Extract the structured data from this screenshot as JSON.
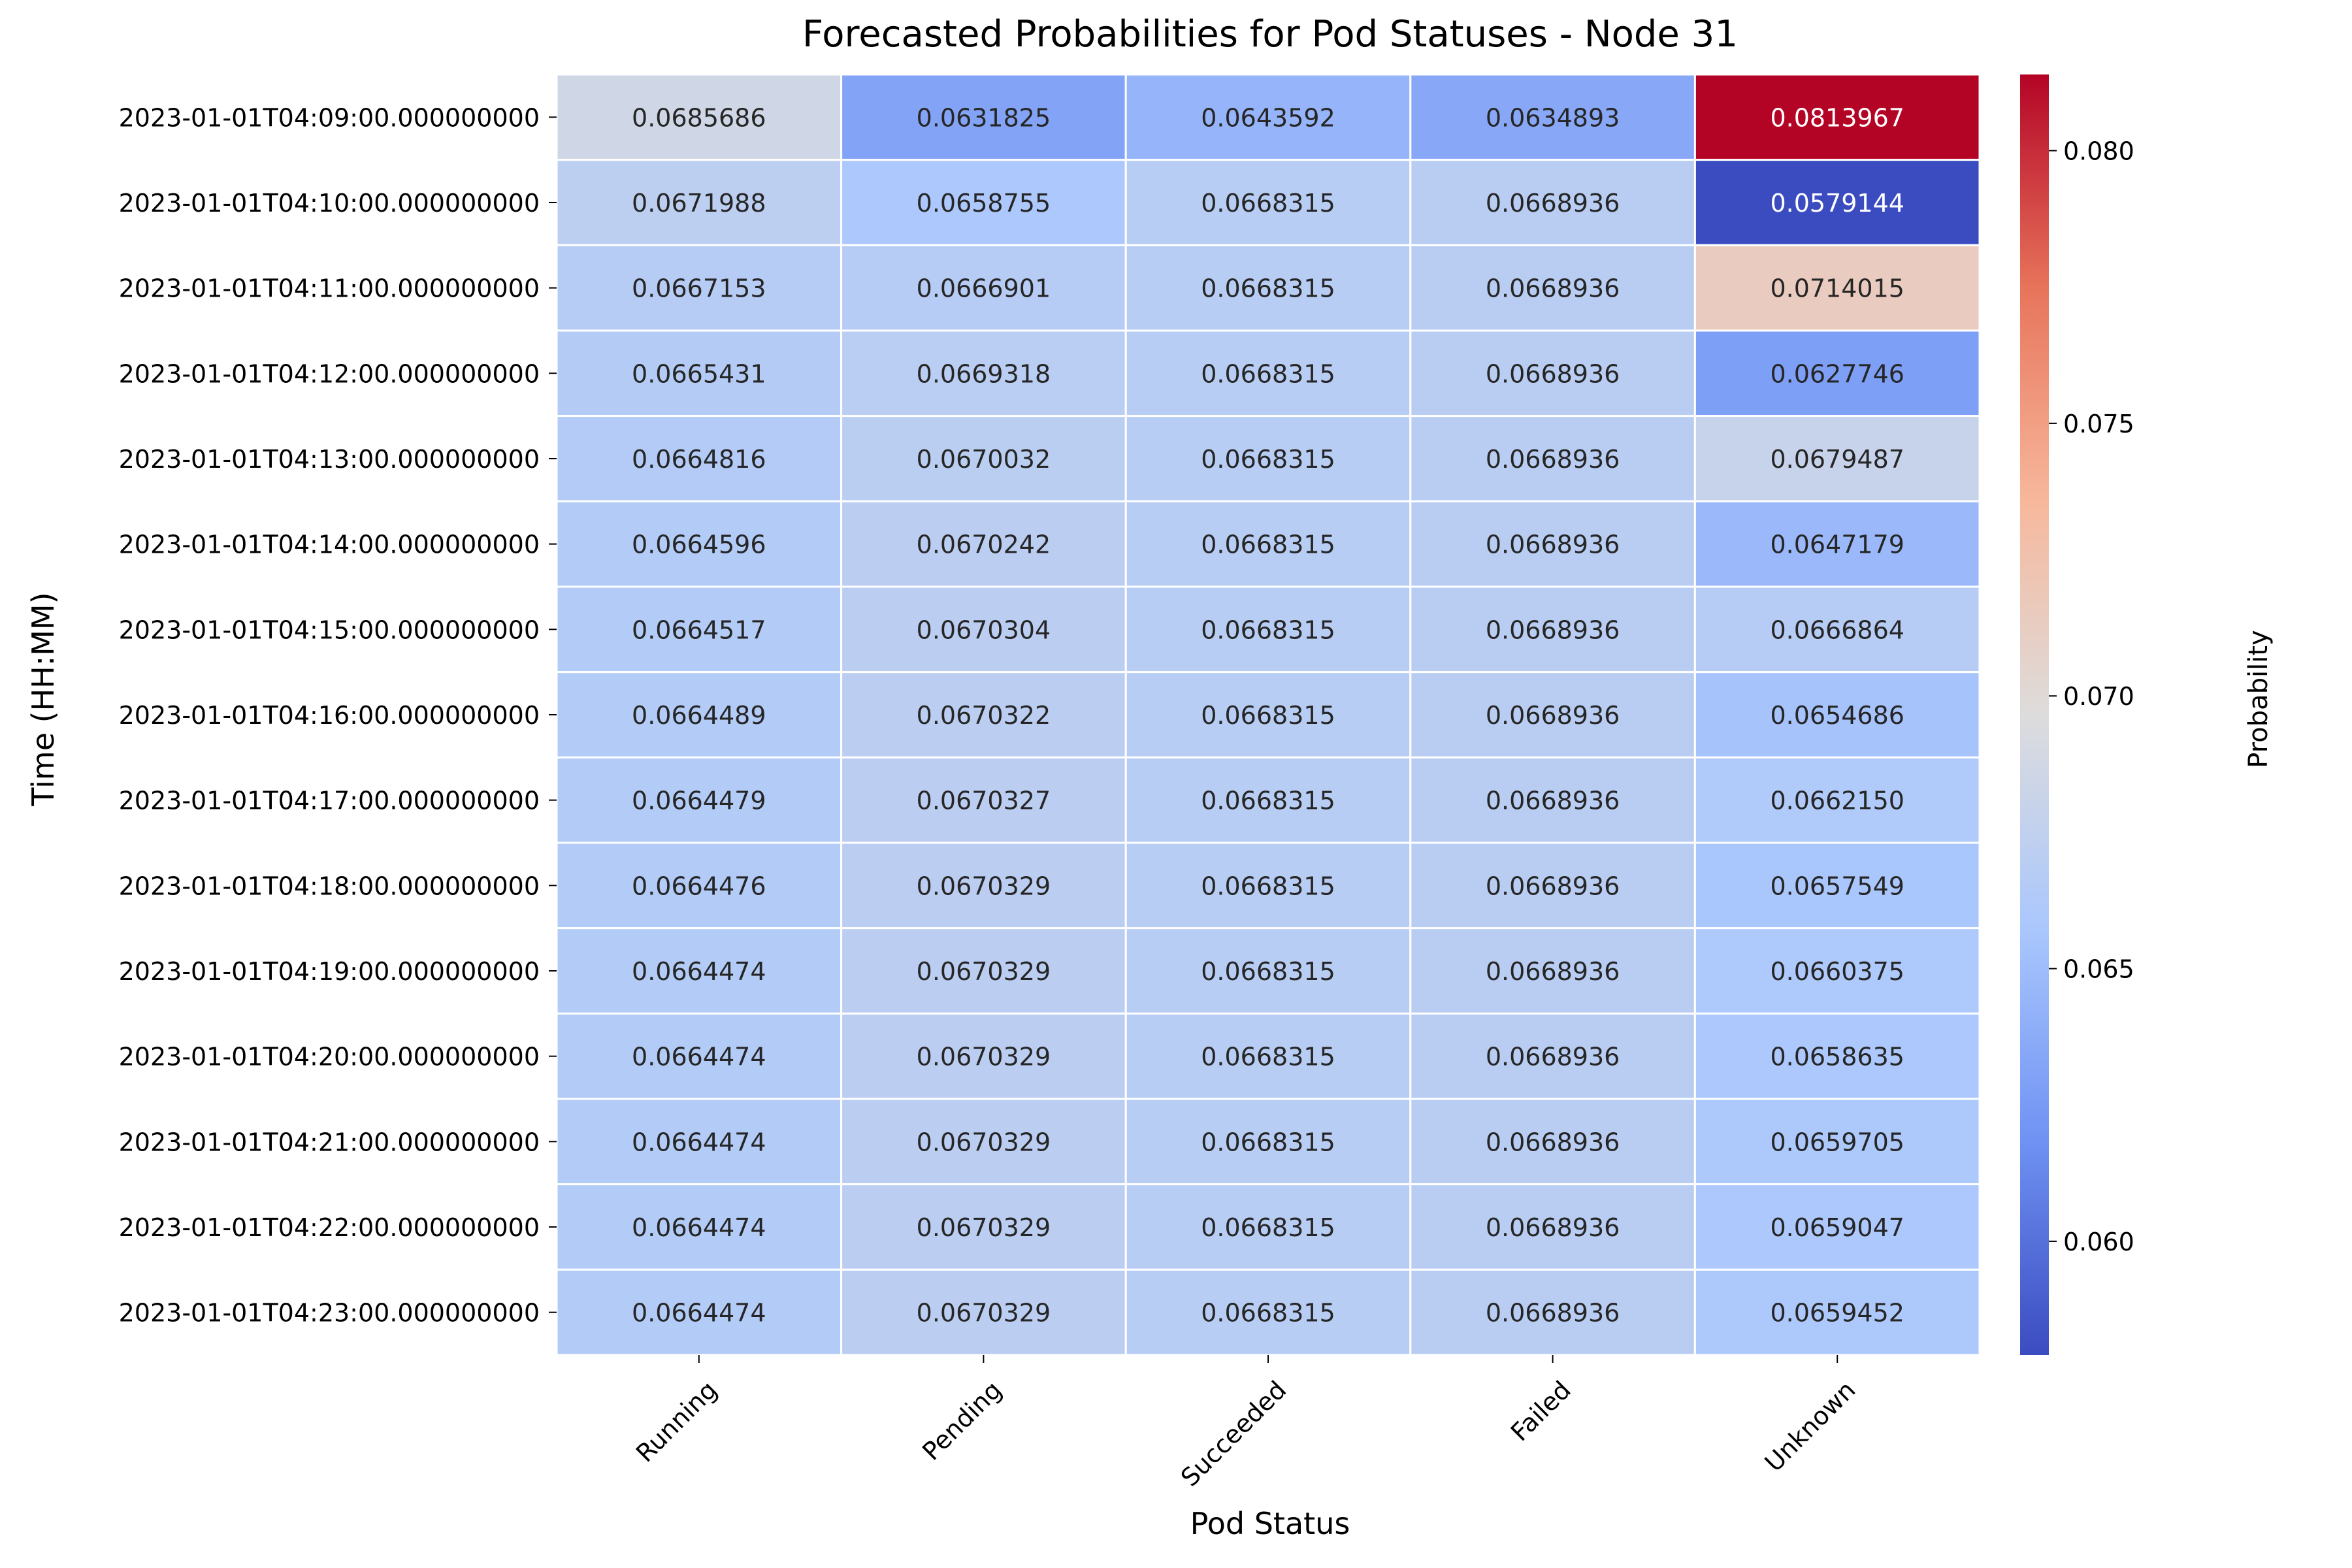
{
  "chart_data": {
    "type": "heatmap",
    "title": "Forecasted Probabilities for Pod Statuses - Node 31",
    "xlabel": "Pod Status",
    "ylabel": "Time (HH:MM)",
    "columns": [
      "Running",
      "Pending",
      "Succeeded",
      "Failed",
      "Unknown"
    ],
    "rows": [
      "2023-01-01T04:09:00.000000000",
      "2023-01-01T04:10:00.000000000",
      "2023-01-01T04:11:00.000000000",
      "2023-01-01T04:12:00.000000000",
      "2023-01-01T04:13:00.000000000",
      "2023-01-01T04:14:00.000000000",
      "2023-01-01T04:15:00.000000000",
      "2023-01-01T04:16:00.000000000",
      "2023-01-01T04:17:00.000000000",
      "2023-01-01T04:18:00.000000000",
      "2023-01-01T04:19:00.000000000",
      "2023-01-01T04:20:00.000000000",
      "2023-01-01T04:21:00.000000000",
      "2023-01-01T04:22:00.000000000",
      "2023-01-01T04:23:00.000000000"
    ],
    "values": [
      [
        0.0685686,
        0.0631825,
        0.0643592,
        0.0634893,
        0.0813967
      ],
      [
        0.0671988,
        0.0658755,
        0.0668315,
        0.0668936,
        0.0579144
      ],
      [
        0.0667153,
        0.0666901,
        0.0668315,
        0.0668936,
        0.0714015
      ],
      [
        0.0665431,
        0.0669318,
        0.0668315,
        0.0668936,
        0.0627746
      ],
      [
        0.0664816,
        0.0670032,
        0.0668315,
        0.0668936,
        0.0679487
      ],
      [
        0.0664596,
        0.0670242,
        0.0668315,
        0.0668936,
        0.0647179
      ],
      [
        0.0664517,
        0.0670304,
        0.0668315,
        0.0668936,
        0.0666864
      ],
      [
        0.0664489,
        0.0670322,
        0.0668315,
        0.0668936,
        0.0654686
      ],
      [
        0.0664479,
        0.0670327,
        0.0668315,
        0.0668936,
        0.066215
      ],
      [
        0.0664476,
        0.0670329,
        0.0668315,
        0.0668936,
        0.0657549
      ],
      [
        0.0664474,
        0.0670329,
        0.0668315,
        0.0668936,
        0.0660375
      ],
      [
        0.0664474,
        0.0670329,
        0.0668315,
        0.0668936,
        0.0658635
      ],
      [
        0.0664474,
        0.0670329,
        0.0668315,
        0.0668936,
        0.0659705
      ],
      [
        0.0664474,
        0.0670329,
        0.0668315,
        0.0668936,
        0.0659047
      ],
      [
        0.0664474,
        0.0670329,
        0.0668315,
        0.0668936,
        0.0659452
      ]
    ],
    "value_labels": [
      [
        "0.0685686",
        "0.0631825",
        "0.0643592",
        "0.0634893",
        "0.0813967"
      ],
      [
        "0.0671988",
        "0.0658755",
        "0.0668315",
        "0.0668936",
        "0.0579144"
      ],
      [
        "0.0667153",
        "0.0666901",
        "0.0668315",
        "0.0668936",
        "0.0714015"
      ],
      [
        "0.0665431",
        "0.0669318",
        "0.0668315",
        "0.0668936",
        "0.0627746"
      ],
      [
        "0.0664816",
        "0.0670032",
        "0.0668315",
        "0.0668936",
        "0.0679487"
      ],
      [
        "0.0664596",
        "0.0670242",
        "0.0668315",
        "0.0668936",
        "0.0647179"
      ],
      [
        "0.0664517",
        "0.0670304",
        "0.0668315",
        "0.0668936",
        "0.0666864"
      ],
      [
        "0.0664489",
        "0.0670322",
        "0.0668315",
        "0.0668936",
        "0.0654686"
      ],
      [
        "0.0664479",
        "0.0670327",
        "0.0668315",
        "0.0668936",
        "0.0662150"
      ],
      [
        "0.0664476",
        "0.0670329",
        "0.0668315",
        "0.0668936",
        "0.0657549"
      ],
      [
        "0.0664474",
        "0.0670329",
        "0.0668315",
        "0.0668936",
        "0.0660375"
      ],
      [
        "0.0664474",
        "0.0670329",
        "0.0668315",
        "0.0668936",
        "0.0658635"
      ],
      [
        "0.0664474",
        "0.0670329",
        "0.0668315",
        "0.0668936",
        "0.0659705"
      ],
      [
        "0.0664474",
        "0.0670329",
        "0.0668315",
        "0.0668936",
        "0.0659047"
      ],
      [
        "0.0664474",
        "0.0670329",
        "0.0668315",
        "0.0668936",
        "0.0659452"
      ]
    ],
    "colorbar": {
      "label": "Probability",
      "range": [
        0.0579144,
        0.0813967
      ],
      "ticks": [
        0.06,
        0.065,
        0.07,
        0.075,
        0.08
      ],
      "tick_labels": [
        "0.060",
        "0.065",
        "0.070",
        "0.075",
        "0.080"
      ]
    },
    "colormap": "coolwarm",
    "colormap_stops": [
      "#3b4cc0",
      "#6f92f3",
      "#aac7fd",
      "#dddcdc",
      "#f7b89c",
      "#e7745b",
      "#b40426"
    ],
    "grid": false,
    "cell_border_color": "#ffffff",
    "text_color_dark": "#262626",
    "text_color_light": "#ffffff"
  }
}
